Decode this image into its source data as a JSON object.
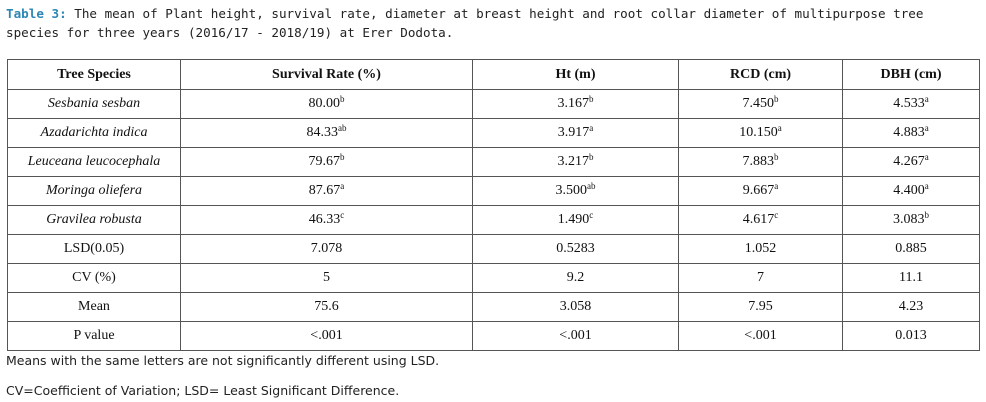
{
  "caption": {
    "label": "Table 3:",
    "text": " The mean of Plant height, survival rate, diameter at breast height and root collar diameter of multipurpose  tree species for three years (2016/17 - 2018/19) at Erer Dodota."
  },
  "table": {
    "headers": [
      "Tree Species",
      "Survival Rate (%)",
      "Ht (m)",
      "RCD (cm)",
      "DBH (cm)"
    ],
    "rows": [
      [
        {
          "v": "Sesbania sesban",
          "it": true
        },
        {
          "v": "80.00",
          "s": "b"
        },
        {
          "v": "3.167",
          "s": "b"
        },
        {
          "v": "7.450",
          "s": "b"
        },
        {
          "v": "4.533",
          "s": "a"
        }
      ],
      [
        {
          "v": "Azadarichta indica",
          "it": true
        },
        {
          "v": "84.33",
          "s": "ab"
        },
        {
          "v": "3.917",
          "s": "a"
        },
        {
          "v": "10.150",
          "s": "a"
        },
        {
          "v": "4.883",
          "s": "a"
        }
      ],
      [
        {
          "v": "Leuceana leucocephala",
          "it": true
        },
        {
          "v": "79.67",
          "s": "b"
        },
        {
          "v": "3.217",
          "s": "b"
        },
        {
          "v": "7.883",
          "s": "b"
        },
        {
          "v": "4.267",
          "s": "a"
        }
      ],
      [
        {
          "v": "Moringa oliefera",
          "it": true
        },
        {
          "v": "87.67",
          "s": "a"
        },
        {
          "v": "3.500",
          "s": "ab"
        },
        {
          "v": "9.667",
          "s": "a"
        },
        {
          "v": "4.400",
          "s": "a"
        }
      ],
      [
        {
          "v": "Gravilea robusta",
          "it": true
        },
        {
          "v": "46.33",
          "s": "c"
        },
        {
          "v": "1.490",
          "s": "c"
        },
        {
          "v": "4.617",
          "s": "c"
        },
        {
          "v": "3.083",
          "s": "b"
        }
      ],
      [
        {
          "v": "LSD(0.05)"
        },
        {
          "v": "7.078"
        },
        {
          "v": "0.5283"
        },
        {
          "v": "1.052"
        },
        {
          "v": "0.885"
        }
      ],
      [
        {
          "v": "CV (%)"
        },
        {
          "v": "5"
        },
        {
          "v": "9.2"
        },
        {
          "v": "7"
        },
        {
          "v": "11.1"
        }
      ],
      [
        {
          "v": "Mean"
        },
        {
          "v": "75.6"
        },
        {
          "v": "3.058"
        },
        {
          "v": "7.95"
        },
        {
          "v": "4.23"
        }
      ],
      [
        {
          "v": "P value"
        },
        {
          "v": "<.001"
        },
        {
          "v": "<.001"
        },
        {
          "v": "<.001"
        },
        {
          "v": "0.013"
        }
      ]
    ]
  },
  "notes": {
    "line1": "Means with the same letters are not significantly different using LSD.",
    "line2": "CV=Coefficient of Variation; LSD= Least Significant Difference."
  },
  "colors": {
    "caption_label": "#2d86b5",
    "border": "#555555"
  }
}
